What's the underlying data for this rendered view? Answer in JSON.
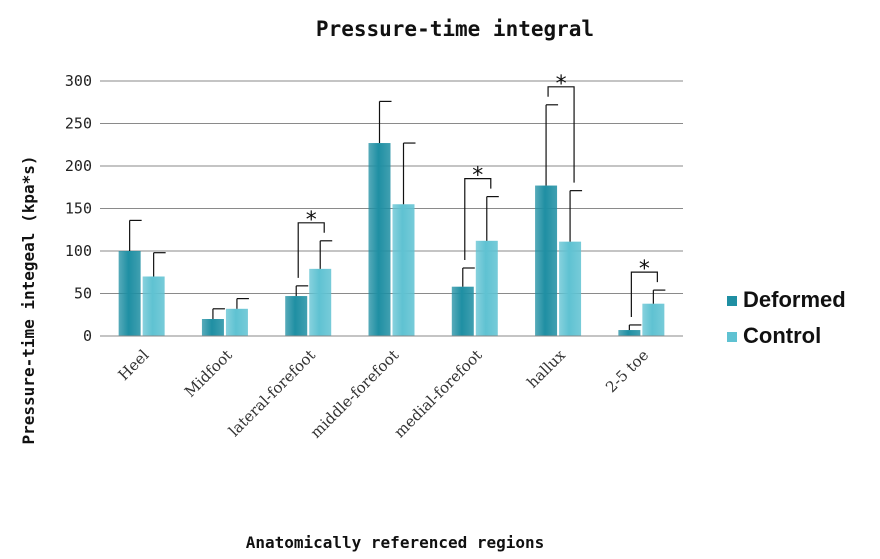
{
  "chart_data": {
    "type": "bar",
    "title": "Pressure-time integral",
    "xlabel": "Anatomically referenced regions",
    "ylabel": "Pressure-time integeal (kpa*s)",
    "categories": [
      "Heel",
      "Midfoot",
      "lateral-forefoot",
      "middle-forefoot",
      "medial-forefoot",
      "hallux",
      "2-5 toe"
    ],
    "ylim": [
      0,
      300
    ],
    "yticks": [
      0,
      50,
      100,
      150,
      200,
      250,
      300
    ],
    "grid": true,
    "legend_position": "right",
    "series": [
      {
        "name": "Deformed",
        "color": "#1f8fa3",
        "values": [
          100,
          20,
          47,
          227,
          58,
          177,
          7
        ],
        "error": [
          36,
          12,
          12,
          49,
          22,
          95,
          6
        ]
      },
      {
        "name": "Control",
        "color": "#5fc2d2",
        "values": [
          70,
          32,
          79,
          155,
          112,
          111,
          38
        ],
        "error": [
          28,
          12,
          33,
          72,
          52,
          60,
          16
        ]
      }
    ],
    "significance": [
      {
        "category": "lateral-forefoot",
        "label": "*"
      },
      {
        "category": "medial-forefoot",
        "label": "*"
      },
      {
        "category": "hallux",
        "label": "*"
      },
      {
        "category": "2-5 toe",
        "label": "*"
      }
    ]
  }
}
